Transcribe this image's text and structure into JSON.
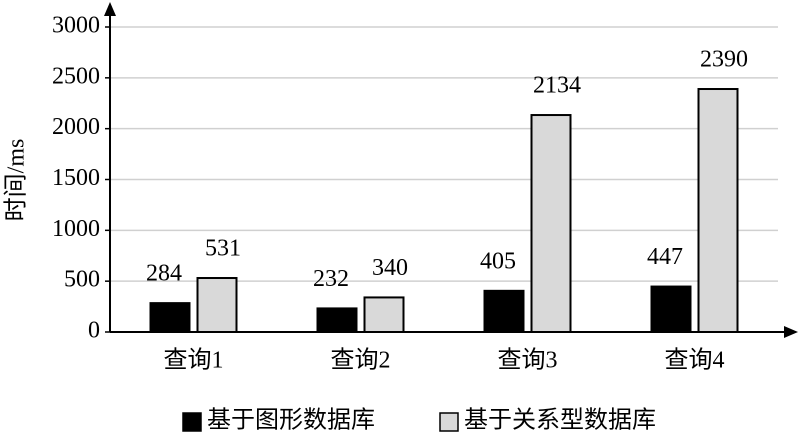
{
  "chart_data": {
    "type": "bar",
    "y_label": "时间/ms",
    "categories": [
      "查询1",
      "查询2",
      "查询3",
      "查询4"
    ],
    "series": [
      {
        "name": "基于图形数据库",
        "color": "#000000",
        "values": [
          284,
          232,
          405,
          447
        ]
      },
      {
        "name": "基于关系型数据库",
        "color": "#d9d9d9",
        "values": [
          531,
          340,
          2134,
          2390
        ]
      }
    ],
    "ylim": [
      0,
      3000
    ],
    "yticks": [
      0,
      500,
      1000,
      1500,
      2000,
      2500,
      3000
    ],
    "grid": true,
    "legend": "bottom"
  }
}
